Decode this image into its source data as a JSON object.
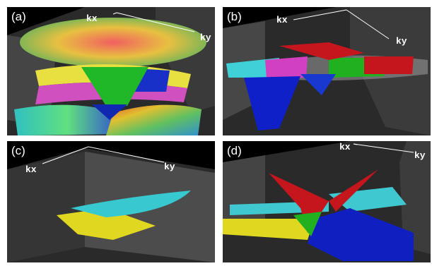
{
  "panels": [
    {
      "id": "a",
      "label": "(a)",
      "axes": [
        "kx",
        "ky"
      ]
    },
    {
      "id": "b",
      "label": "(b)",
      "axes": [
        "kx",
        "ky"
      ]
    },
    {
      "id": "c",
      "label": "(c)",
      "axes": [
        "kx",
        "ky"
      ]
    },
    {
      "id": "d",
      "label": "(d)",
      "axes": [
        "kx",
        "ky"
      ]
    }
  ],
  "colors": {
    "background": "#000000",
    "room_wall": "#4a4a4a",
    "red": "#c4161c",
    "blue": "#1020c8",
    "green": "#20b020",
    "cyan": "#40d0d8",
    "yellow": "#e8e020",
    "magenta": "#d040c0"
  }
}
